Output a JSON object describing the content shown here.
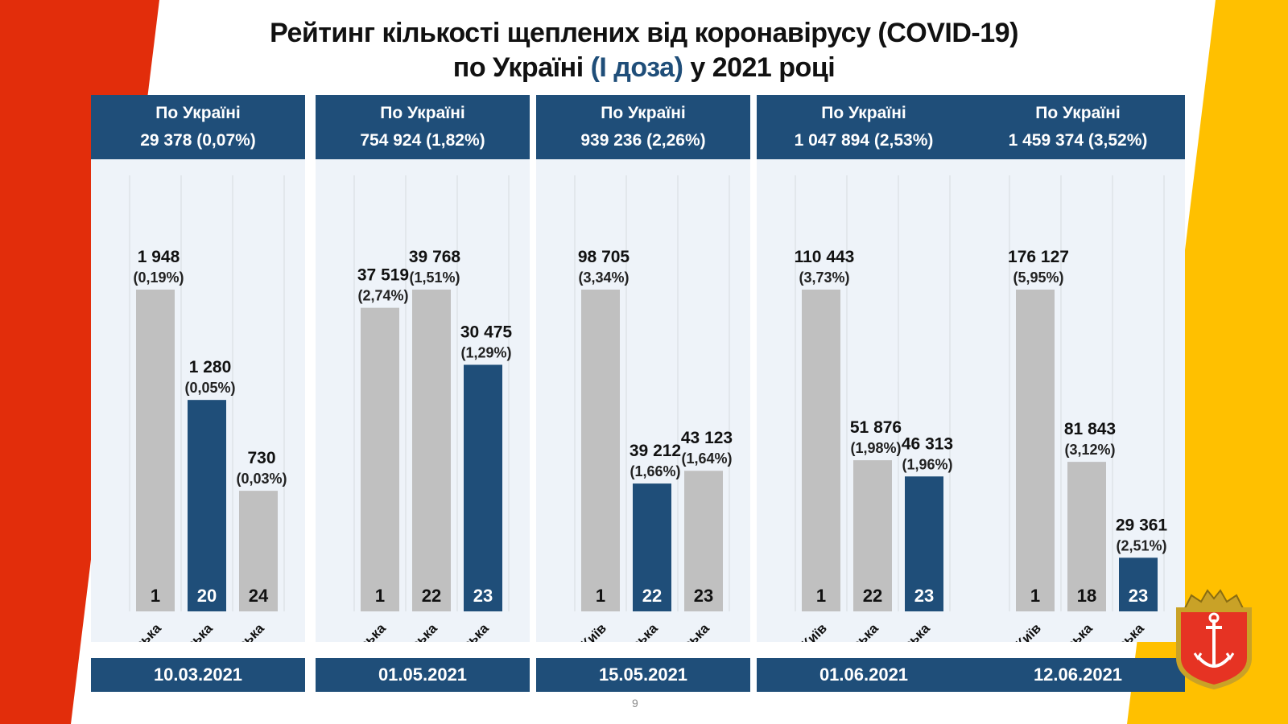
{
  "title": {
    "line1": "Рейтинг кількості щеплених від коронавірусу (COVID-19)",
    "line2_pre": "по Україні ",
    "line2_highlight": "(I доза)",
    "line2_post": " у 2021 році"
  },
  "colors": {
    "header_blue": "#1f4e79",
    "odesa_bar": "#1f4e79",
    "other_bar": "#c0c0c0",
    "red_stripe": "#e22d0b",
    "yellow_stripe": "#ffc000",
    "panel_bg": "#eef3f9"
  },
  "page_number": "9",
  "emblem": "odesa-coat-of-arms-icon",
  "chart_data": [
    {
      "type": "bar",
      "date": "10.03.2021",
      "header_title": "По Україні",
      "header_total": "29 378 (0,07%)",
      "categories": [
        "Тернопільська",
        "Одеська",
        "Харківська"
      ],
      "values": [
        1948,
        1280,
        730
      ],
      "value_labels": [
        "1 948",
        "1 280",
        "730"
      ],
      "percent_labels": [
        "(0,19%)",
        "(0,05%)",
        "(0,03%)"
      ],
      "ranks": [
        "1",
        "20",
        "24"
      ],
      "highlight": [
        false,
        true,
        false
      ]
    },
    {
      "type": "bar",
      "date": "01.05.2021",
      "header_title": "По Україні",
      "header_total": "754 924 (1,82%)",
      "categories": [
        "Полтавська",
        "Харківська",
        "Одеська"
      ],
      "values": [
        37519,
        39768,
        30475
      ],
      "value_labels": [
        "37 519",
        "39 768",
        "30 475"
      ],
      "percent_labels": [
        "(2,74%)",
        "(1,51%)",
        "(1,29%)"
      ],
      "ranks": [
        "1",
        "22",
        "23"
      ],
      "highlight": [
        false,
        false,
        true
      ]
    },
    {
      "type": "bar",
      "date": "15.05.2021",
      "header_title": "По Україні",
      "header_total": "939 236 (2,26%)",
      "categories": [
        "м.Київ",
        "Одеська",
        "Харківська"
      ],
      "values": [
        98705,
        39212,
        43123
      ],
      "value_labels": [
        "98 705",
        "39 212",
        "43 123"
      ],
      "percent_labels": [
        "(3,34%)",
        "(1,66%)",
        "(1,64%)"
      ],
      "ranks": [
        "1",
        "22",
        "23"
      ],
      "highlight": [
        false,
        true,
        false
      ]
    },
    {
      "type": "bar",
      "date": "01.06.2021",
      "header_title": "По Україні",
      "header_total": "1 047 894 (2,53%)",
      "categories": [
        "м.Київ",
        "Харківська",
        "Одеська"
      ],
      "values": [
        110443,
        51876,
        46313
      ],
      "value_labels": [
        "110 443",
        "51 876",
        "46 313"
      ],
      "percent_labels": [
        "(3,73%)",
        "(1,98%)",
        "(1,96%)"
      ],
      "ranks": [
        "1",
        "22",
        "23"
      ],
      "highlight": [
        false,
        false,
        true
      ]
    },
    {
      "type": "bar",
      "date": "12.06.2021",
      "header_title": "По Україні",
      "header_total": "1 459 374 (3,52%)",
      "categories": [
        "м.Київ",
        "Харківська",
        "Одеська"
      ],
      "values": [
        176127,
        81843,
        29361
      ],
      "value_labels": [
        "176 127",
        "81 843",
        "29 361"
      ],
      "percent_labels": [
        "(5,95%)",
        "(3,12%)",
        "(2,51%)"
      ],
      "ranks": [
        "1",
        "18",
        "23"
      ],
      "highlight": [
        false,
        false,
        true
      ]
    }
  ]
}
